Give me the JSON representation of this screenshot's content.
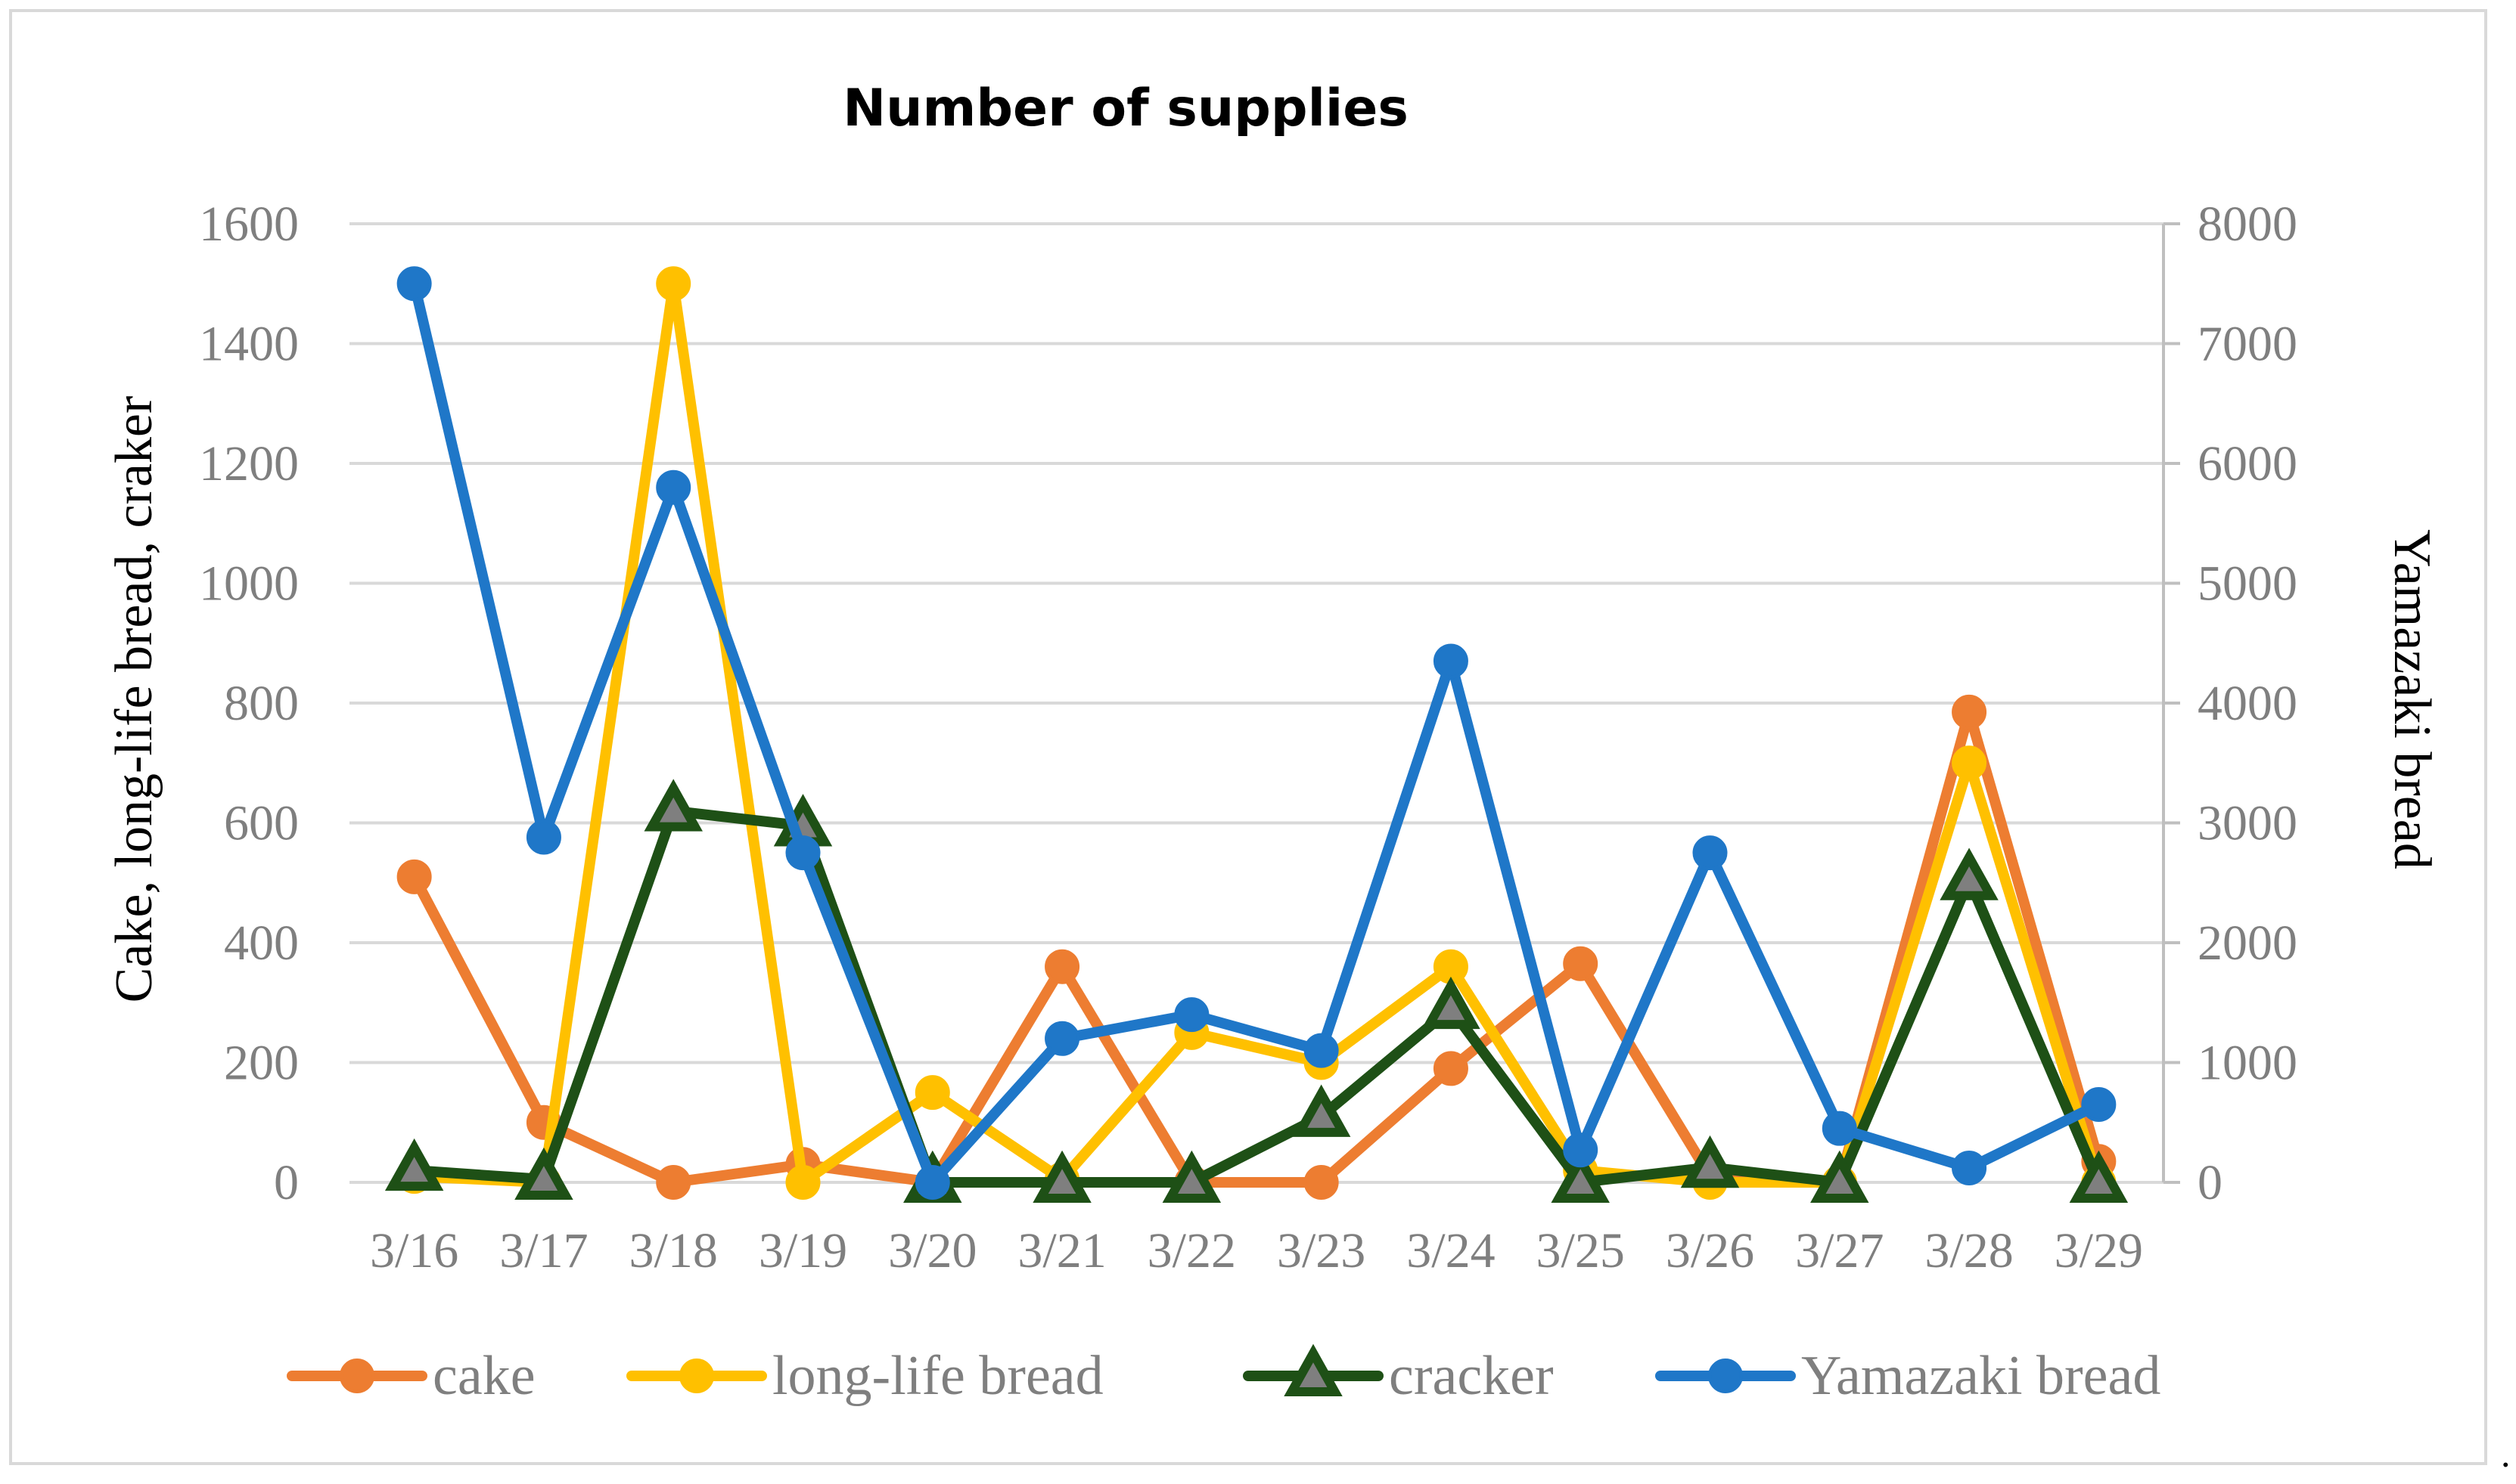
{
  "chart_data": {
    "type": "line",
    "title": "Number of supplies",
    "categories": [
      "3/16",
      "3/17",
      "3/18",
      "3/19",
      "3/20",
      "3/21",
      "3/22",
      "3/23",
      "3/24",
      "3/25",
      "3/26",
      "3/27",
      "3/28",
      "3/29"
    ],
    "y_left": {
      "label": "Cake, long-life bread, craker",
      "min": 0,
      "max": 1600,
      "ticks": [
        "0",
        "200",
        "400",
        "600",
        "800",
        "1000",
        "1200",
        "1400",
        "1600"
      ]
    },
    "y_right": {
      "label": "Yamazaki bread",
      "min": 0,
      "max": 8000,
      "ticks": [
        "0",
        "1000",
        "2000",
        "3000",
        "4000",
        "5000",
        "6000",
        "7000",
        "8000"
      ]
    },
    "grid": "horizontal",
    "legend_position": "bottom",
    "series": [
      {
        "name": "cake",
        "axis": "left",
        "color": "#ED7D31",
        "marker": "circle",
        "values": [
          510,
          100,
          0,
          30,
          0,
          360,
          0,
          0,
          190,
          365,
          10,
          0,
          785,
          35
        ]
      },
      {
        "name": "long-life bread",
        "axis": "left",
        "color": "#FFC000",
        "marker": "circle",
        "values": [
          10,
          0,
          1500,
          0,
          150,
          5,
          250,
          200,
          360,
          20,
          0,
          0,
          700,
          0
        ]
      },
      {
        "name": "cracker",
        "axis": "left",
        "color": "#1E5016",
        "marker": "triangle",
        "values": [
          20,
          5,
          620,
          595,
          0,
          0,
          0,
          110,
          290,
          0,
          25,
          0,
          505,
          0
        ]
      },
      {
        "name": "Yamazaki bread",
        "axis": "right",
        "color": "#1F77C8",
        "marker": "circle",
        "values": [
          7500,
          2880,
          5800,
          2750,
          0,
          1200,
          1400,
          1100,
          4350,
          270,
          2750,
          450,
          120,
          650
        ]
      }
    ]
  },
  "footer_mark": "."
}
